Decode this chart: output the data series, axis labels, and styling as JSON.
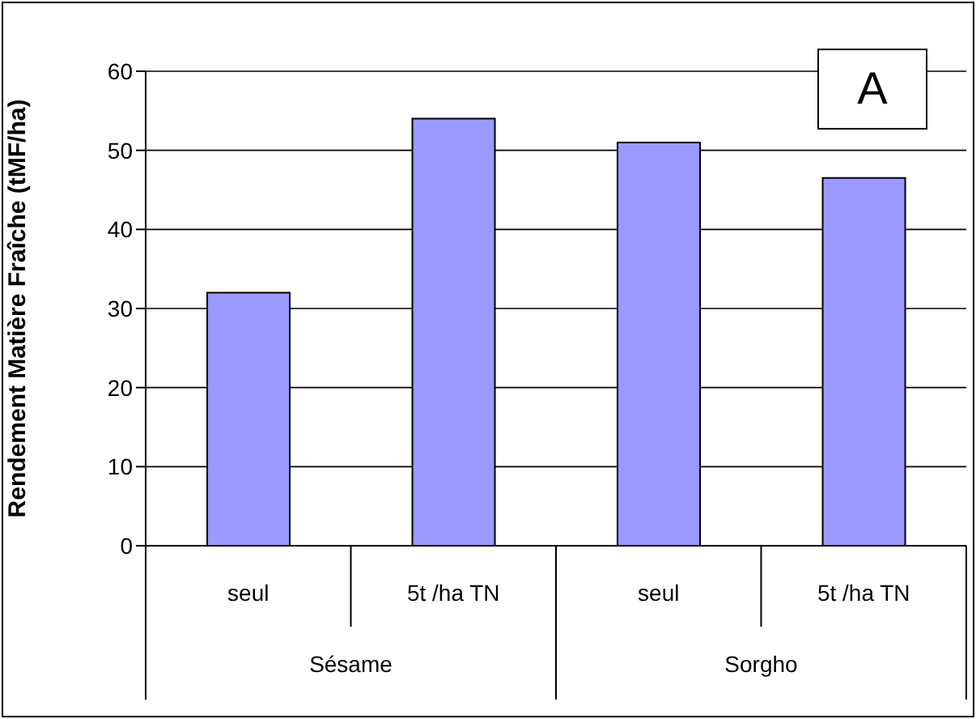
{
  "chart_data": {
    "type": "bar",
    "ylabel": "Rendement Matière Fraîche (tMF/ha)",
    "categories": [
      "seul",
      "5t /ha TN",
      "seul",
      "5t /ha TN"
    ],
    "values": [
      32,
      54,
      51,
      46.5
    ],
    "color": "#9999ff",
    "ylim": [
      0,
      60
    ],
    "yticks": [
      0,
      10,
      20,
      30,
      40,
      50,
      60
    ],
    "grid": "y",
    "annotations": [
      "A",
      "Sésame",
      "Sorgho"
    ]
  }
}
